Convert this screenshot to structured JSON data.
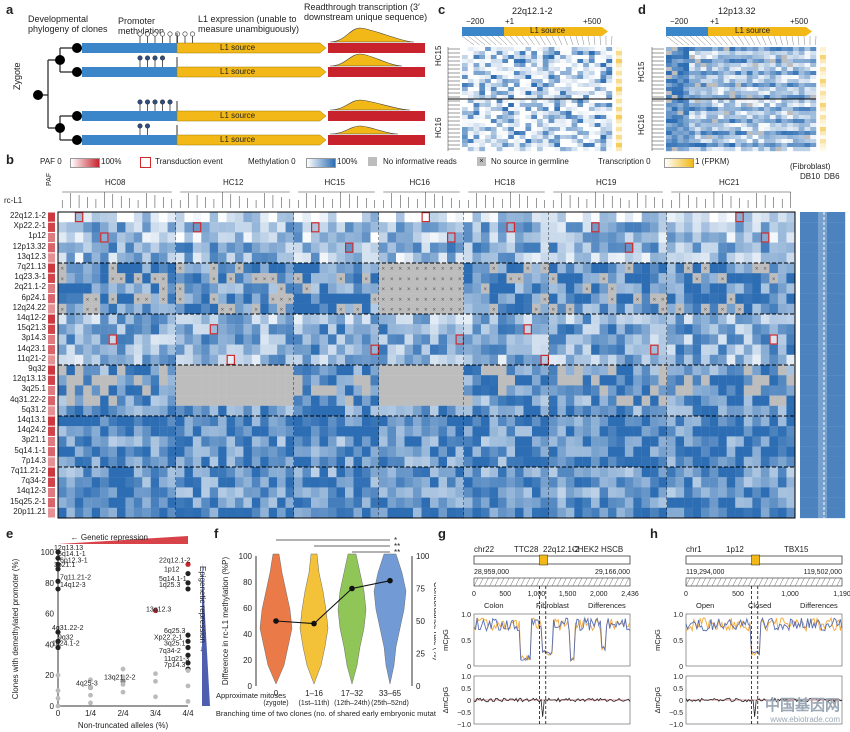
{
  "panels": {
    "a": {
      "label": "a",
      "phylogeny_label": "Developmental phylogeny of clones",
      "promoter_label": "Promoter methylation",
      "expression_label": "L1 expression (unable to measure unambiguously)",
      "readthrough_label": "Readthrough transcription (3′ downstream unique sequence)",
      "zygote_label": "Zygote",
      "l1_source_label": "L1 source",
      "colors": {
        "blue": "#3a86c8",
        "yellow": "#f2b817",
        "red": "#c8232c"
      }
    },
    "c": {
      "label": "c",
      "title": "22q12.1-2",
      "ticks": [
        "−200",
        "+1",
        "+500"
      ],
      "source": "L1 source",
      "groups": [
        "HC15",
        "HC16"
      ]
    },
    "d": {
      "label": "d",
      "title": "12p13.32",
      "ticks": [
        "−200",
        "+1",
        "+500"
      ],
      "source": "L1 source",
      "groups": [
        "HC15",
        "HC16"
      ]
    },
    "b": {
      "label": "b",
      "legend": {
        "paf": "PAF 0",
        "paf_max": "100%",
        "transduction": "Transduction event",
        "methylation": "Methylation 0",
        "methylation_max": "100%",
        "no_reads": "No informative reads",
        "no_source": "No source in germline",
        "transcription": "Transcription 0",
        "transcription_max": "1 (FPKM)"
      },
      "row_header": "rc-L1",
      "paf_header": "PAF",
      "clone_groups": [
        "HC08",
        "HC12",
        "HC15",
        "HC16",
        "HC18",
        "HC19",
        "HC21"
      ],
      "fibroblast_label": "(Fibroblast)",
      "fibroblast_groups": [
        "DB10",
        "DB6"
      ],
      "rows": [
        "22q12.1-2",
        "Xp22.2-1",
        "1p12",
        "12p13.32",
        "13q12.3",
        "7q21.13",
        "1q23.3-1",
        "2q21.1-2",
        "6p24.1",
        "12q24.22",
        "14q12-2",
        "15q21.3",
        "3p14.3",
        "14q23.1",
        "11q21-2",
        "9q32",
        "12q13.13",
        "3q25.1",
        "4q31.22-2",
        "5q31.2",
        "14q13.1",
        "14q24.2",
        "3p21.1",
        "5q14.1-1",
        "7p14.3",
        "7q11.21-2",
        "7q34-2",
        "14q12-3",
        "15q25.2-1",
        "20p11.21"
      ]
    },
    "e": {
      "label": "e",
      "genetic_repression": "Genetic repression",
      "epigenetic_repression": "Epigenetic repression",
      "xlabel": "Non-truncated alleles (%)",
      "ylabel": "Clones with demethylated promoter (%)",
      "xticks": [
        "0",
        "1/4",
        "2/4",
        "3/4",
        "4/4"
      ],
      "yticks": [
        "0",
        "20",
        "40",
        "60",
        "80",
        "100"
      ],
      "point_labels": [
        "12q13.13",
        "5q14.1-1",
        "6p12.3-1",
        "3p21.1",
        "7q11.21-2",
        "14q12-3",
        "22q12.1-2",
        "1p12",
        "5q14.1-1",
        "1q25.3",
        "13q12.3",
        "12p13.32",
        "4q31.22-2",
        "9q32",
        "1q24.1-2",
        "6q25.3",
        "Xp22.2-1",
        "3q25.1",
        "7q34-2",
        "11q21-3",
        "7p14.3",
        "13q21.2-2",
        "4q25-3"
      ]
    },
    "f": {
      "label": "f",
      "ylabel": "Difference in rc-L1 methylation (%P)",
      "y2label": "Concordance rate (%)",
      "xlabel": "Branching time of two clones (no. of shared early embryonic mutations)",
      "mitoses_label": "Approximate mitoses",
      "categories": [
        "0",
        "1–16",
        "17–32",
        "33–65"
      ],
      "sublabels": [
        "(zygote)",
        "(1st–11th)",
        "(12th–24th)",
        "(25th–52nd)"
      ],
      "yticks": [
        "0",
        "20",
        "40",
        "60",
        "80",
        "100"
      ],
      "y2ticks": [
        "0",
        "25",
        "50",
        "75",
        "100"
      ],
      "sig": [
        "*",
        "**",
        "**"
      ],
      "colors": [
        "#e8632a",
        "#f2b817",
        "#7dbb3a",
        "#5a8ad0"
      ]
    },
    "g": {
      "label": "g",
      "chr": "chr22",
      "genes": [
        "TTC28",
        "22q12.1-2",
        "CHEK2",
        "HSCB"
      ],
      "coords": [
        "28,959,000",
        "29,166,000"
      ],
      "scale": [
        "0",
        "500",
        "1,000",
        "1,500",
        "2,000",
        "2,436"
      ],
      "legend": [
        "Colon",
        "Fibroblast",
        "Differences"
      ],
      "ylab_top": "mCpG",
      "ylab_bottom": "ΔmCpG",
      "yticks_top": [
        "0",
        "0.5",
        "1.0"
      ],
      "yticks_bottom": [
        "−1.0",
        "−0.5",
        "0",
        "0.5",
        "1.0"
      ]
    },
    "h": {
      "label": "h",
      "chr": "chr1",
      "genes": [
        "1p12",
        "TBX15"
      ],
      "coords": [
        "119,294,000",
        "119,502,000"
      ],
      "scale": [
        "0",
        "500",
        "1,000",
        "1,190"
      ],
      "legend": [
        "Open",
        "Closed",
        "Differences"
      ],
      "ylab_top": "mCpG",
      "ylab_bottom": "ΔmCpG",
      "yticks_top": [
        "0",
        "0.5",
        "1.0"
      ],
      "yticks_bottom": [
        "−1.0",
        "−0.5",
        "0",
        "0.5",
        "1.0"
      ]
    }
  },
  "watermark": {
    "text": "中国基因网",
    "url": "www.ebiotrade.com"
  }
}
